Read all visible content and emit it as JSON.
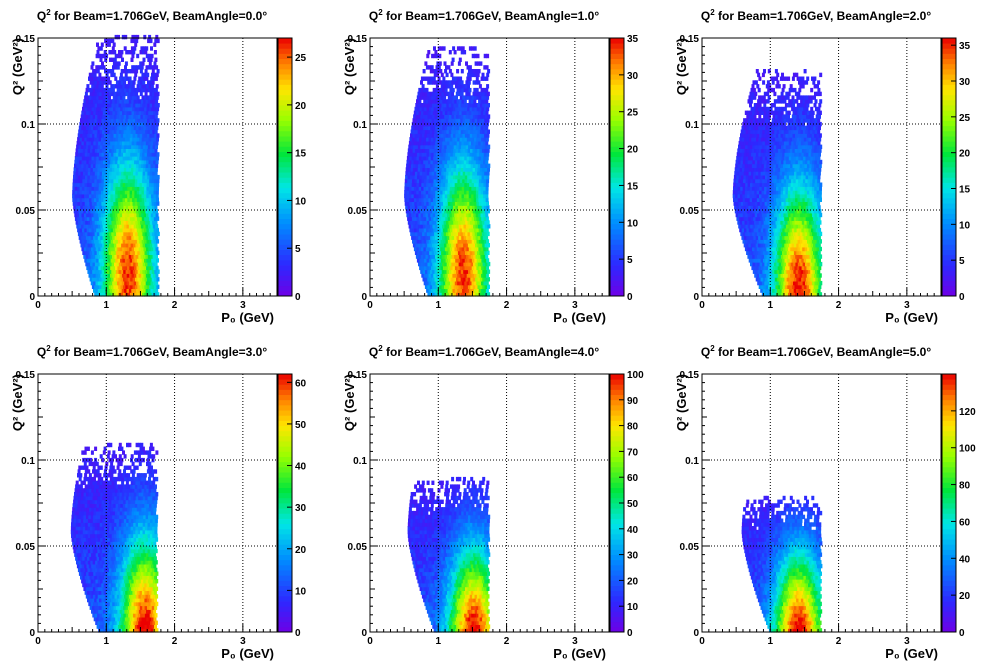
{
  "chart_data": [
    {
      "type": "heatmap",
      "title": "Q² for Beam=1.706GeV, BeamAngle=0.0°",
      "title_parts": {
        "prefix": "Q",
        "sup": "2",
        "suffix": " for Beam=1.706GeV, BeamAngle=0.0°"
      },
      "xlabel": "P₀ (GeV)",
      "ylabel": "Q² (GeV²)",
      "xlim": [
        0,
        3.5
      ],
      "ylim": [
        0,
        0.15
      ],
      "x_ticks": [
        0,
        1,
        2,
        3
      ],
      "y_ticks": [
        0,
        0.05,
        0.1,
        0.15
      ],
      "z_max": 27,
      "z_ticks": [
        0,
        5,
        10,
        15,
        20,
        25
      ],
      "grid": true,
      "shape": {
        "x_min": [
          0.5,
          0.88
        ],
        "x_max": 1.74,
        "q2_max": 0.15,
        "q2_min_at_left": 0.0,
        "hot_p0": 1.3,
        "hot_q2": 0.02
      }
    },
    {
      "type": "heatmap",
      "title": "Q² for Beam=1.706GeV, BeamAngle=1.0°",
      "title_parts": {
        "prefix": "Q",
        "sup": "2",
        "suffix": " for Beam=1.706GeV, BeamAngle=1.0°"
      },
      "xlabel": "P₀ (GeV)",
      "ylabel": "Q² (GeV²)",
      "xlim": [
        0,
        3.5
      ],
      "ylim": [
        0,
        0.15
      ],
      "x_ticks": [
        0,
        1,
        2,
        3
      ],
      "y_ticks": [
        0,
        0.05,
        0.1,
        0.15
      ],
      "z_max": 35,
      "z_ticks": [
        0,
        5,
        10,
        15,
        20,
        25,
        30,
        35
      ],
      "grid": true,
      "shape": {
        "x_min": [
          0.5,
          0.9
        ],
        "x_max": 1.72,
        "q2_max": 0.145,
        "hot_p0": 1.35,
        "hot_q2": 0.02
      }
    },
    {
      "type": "heatmap",
      "title": "Q² for Beam=1.706GeV, BeamAngle=2.0°",
      "title_parts": {
        "prefix": "Q",
        "sup": "2",
        "suffix": " for Beam=1.706GeV, BeamAngle=2.0°"
      },
      "xlabel": "P₀ (GeV)",
      "ylabel": "Q² (GeV²)",
      "xlim": [
        0,
        3.5
      ],
      "ylim": [
        0,
        0.15
      ],
      "x_ticks": [
        0,
        1,
        2,
        3
      ],
      "y_ticks": [
        0,
        0.05,
        0.1,
        0.15
      ],
      "z_max": 36,
      "z_ticks": [
        0,
        5,
        10,
        15,
        20,
        25,
        30,
        35
      ],
      "grid": true,
      "shape": {
        "x_min": [
          0.45,
          0.95
        ],
        "x_max": 1.72,
        "q2_max": 0.13,
        "hot_p0": 1.4,
        "hot_q2": 0.01
      }
    },
    {
      "type": "heatmap",
      "title": "Q² for Beam=1.706GeV, BeamAngle=3.0°",
      "title_parts": {
        "prefix": "Q",
        "sup": "2",
        "suffix": " for Beam=1.706GeV, BeamAngle=3.0°"
      },
      "xlabel": "P₀ (GeV)",
      "ylabel": "Q² (GeV²)",
      "xlim": [
        0,
        3.5
      ],
      "ylim": [
        0,
        0.15
      ],
      "x_ticks": [
        0,
        1,
        2,
        3
      ],
      "y_ticks": [
        0,
        0.05,
        0.1,
        0.15
      ],
      "z_max": 62,
      "z_ticks": [
        0,
        10,
        20,
        30,
        40,
        50,
        60
      ],
      "grid": true,
      "shape": {
        "x_min": [
          0.48,
          0.95
        ],
        "x_max": 1.72,
        "q2_max": 0.108,
        "hot_p0": 1.55,
        "hot_q2": 0.005
      }
    },
    {
      "type": "heatmap",
      "title": "Q² for Beam=1.706GeV, BeamAngle=4.0°",
      "title_parts": {
        "prefix": "Q",
        "sup": "2",
        "suffix": " for Beam=1.706GeV, BeamAngle=4.0°"
      },
      "xlabel": "P₀ (GeV)",
      "ylabel": "Q² (GeV²)",
      "xlim": [
        0,
        3.5
      ],
      "ylim": [
        0,
        0.15
      ],
      "x_ticks": [
        0,
        1,
        2,
        3
      ],
      "y_ticks": [
        0,
        0.05,
        0.1,
        0.15
      ],
      "z_max": 100,
      "z_ticks": [
        0,
        10,
        20,
        30,
        40,
        50,
        60,
        70,
        80,
        90,
        100
      ],
      "grid": true,
      "shape": {
        "x_min": [
          0.55,
          1.0
        ],
        "x_max": 1.72,
        "q2_max": 0.088,
        "hot_p0": 1.5,
        "hot_q2": 0.003
      }
    },
    {
      "type": "heatmap",
      "title": "Q² for Beam=1.706GeV, BeamAngle=5.0°",
      "title_parts": {
        "prefix": "Q",
        "sup": "2",
        "suffix": " for Beam=1.706GeV, BeamAngle=5.0°"
      },
      "xlabel": "P₀ (GeV)",
      "ylabel": "Q² (GeV²)",
      "xlim": [
        0,
        3.5
      ],
      "ylim": [
        0,
        0.15
      ],
      "x_ticks": [
        0,
        1,
        2,
        3
      ],
      "y_ticks": [
        0,
        0.05,
        0.1,
        0.15
      ],
      "z_max": 140,
      "z_ticks": [
        0,
        20,
        40,
        60,
        80,
        100,
        120
      ],
      "grid": true,
      "shape": {
        "x_min": [
          0.58,
          1.05
        ],
        "x_max": 1.72,
        "q2_max": 0.078,
        "hot_p0": 1.4,
        "hot_q2": 0.003
      }
    }
  ]
}
